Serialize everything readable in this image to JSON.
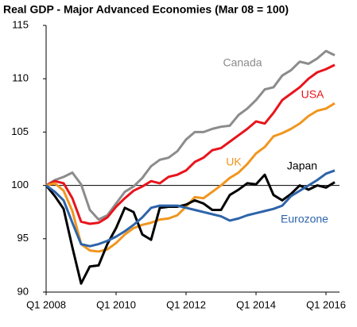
{
  "chart_data": {
    "type": "line",
    "title": "Real GDP - Major Advanced Economies (Mar 08 = 100)",
    "categories": [
      "Q1 2008",
      null,
      null,
      null,
      null,
      null,
      null,
      null,
      "Q1 2010",
      null,
      null,
      null,
      null,
      null,
      null,
      null,
      "Q1 2012",
      null,
      null,
      null,
      null,
      null,
      null,
      null,
      "Q1 2014",
      null,
      null,
      null,
      null,
      null,
      null,
      null,
      "Q1 2016",
      null
    ],
    "series": [
      {
        "name": "Canada",
        "color": "#8c8c8c",
        "values": [
          100,
          100.5,
          100.8,
          101.2,
          100.1,
          97.7,
          96.8,
          97.2,
          98.3,
          99.4,
          99.9,
          100.7,
          101.8,
          102.4,
          102.6,
          103.2,
          104.3,
          105,
          105,
          105.3,
          105.5,
          105.6,
          106.6,
          107.2,
          108,
          109,
          109.2,
          110.3,
          110.8,
          111.6,
          111.4,
          111.9,
          112.6,
          112.2
        ]
      },
      {
        "name": "USA",
        "color": "#e8141c",
        "values": [
          100,
          100.4,
          100.2,
          98.8,
          96.6,
          96.4,
          96.5,
          97,
          98,
          98.8,
          99.5,
          99.9,
          100.4,
          100.2,
          100.8,
          101,
          101.4,
          102.2,
          102.6,
          103.3,
          103.5,
          104.1,
          104.7,
          105.3,
          106,
          105.8,
          106.8,
          108,
          108.6,
          109.2,
          110,
          110.6,
          110.9,
          111.3
        ]
      },
      {
        "name": "UK",
        "color": "#f0961e",
        "values": [
          100,
          100.2,
          99.5,
          97.6,
          94.5,
          93.9,
          93.8,
          94,
          94.6,
          95.4,
          96,
          96.3,
          96.5,
          96.8,
          96.9,
          97.2,
          98,
          98.9,
          98.8,
          99.4,
          100,
          100.7,
          101.2,
          102,
          103,
          103.6,
          104.6,
          104.9,
          105.3,
          105.8,
          106.5,
          107,
          107.2,
          107.7
        ]
      },
      {
        "name": "Japan",
        "color": "#000000",
        "values": [
          100,
          99,
          97.8,
          94.2,
          90.8,
          92.4,
          92.5,
          94.5,
          96,
          97.9,
          97.5,
          95.4,
          94.9,
          97.9,
          98,
          98,
          98.2,
          98.6,
          98.3,
          97.7,
          97.7,
          99.1,
          99.6,
          100.2,
          100.1,
          101,
          99.1,
          98.6,
          99.2,
          100,
          99.6,
          100,
          99.8,
          100.3
        ]
      },
      {
        "name": "Eurozone",
        "color": "#2e64aa",
        "values": [
          100,
          99.4,
          98.6,
          96.5,
          94.5,
          94.3,
          94.5,
          94.8,
          95.2,
          95.7,
          96.3,
          97,
          97.9,
          98.1,
          98.1,
          98.1,
          97.9,
          97.7,
          97.5,
          97.3,
          97.1,
          96.7,
          96.9,
          97.2,
          97.4,
          97.6,
          97.8,
          98.1,
          99,
          99.5,
          100,
          100.5,
          101.1,
          101.4
        ]
      }
    ],
    "reference_line": 100,
    "ylim": [
      90,
      115
    ],
    "yticks": [
      90,
      95,
      100,
      105,
      110,
      115
    ],
    "grid": false
  }
}
